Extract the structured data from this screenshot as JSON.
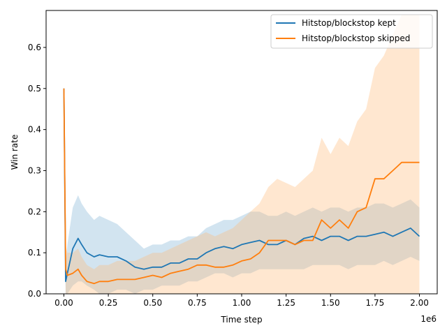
{
  "chart_data": {
    "type": "line",
    "title": "",
    "xlabel": "Time step",
    "ylabel": "Win rate",
    "x_offset_label": "1e6",
    "xlim": [
      -0.1,
      2.1
    ],
    "ylim": [
      0,
      0.69
    ],
    "x_ticks": [
      0,
      0.25,
      0.5,
      0.75,
      1.0,
      1.25,
      1.5,
      1.75,
      2.0
    ],
    "x_tick_labels": [
      "0.00",
      "0.25",
      "0.50",
      "0.75",
      "1.00",
      "1.25",
      "1.50",
      "1.75",
      "2.00"
    ],
    "y_ticks": [
      0,
      0.1,
      0.2,
      0.3,
      0.4,
      0.5,
      0.6
    ],
    "y_tick_labels": [
      "0.0",
      "0.1",
      "0.2",
      "0.3",
      "0.4",
      "0.5",
      "0.6"
    ],
    "grid": false,
    "legend_position": "top-right",
    "series": [
      {
        "name": "Hitstop/blockstop kept",
        "color": "#1f77b4",
        "band_color": "#1f77b4",
        "x": [
          0,
          0.01,
          0.02,
          0.05,
          0.08,
          0.1,
          0.13,
          0.17,
          0.2,
          0.25,
          0.3,
          0.35,
          0.4,
          0.45,
          0.5,
          0.55,
          0.6,
          0.65,
          0.7,
          0.75,
          0.8,
          0.85,
          0.9,
          0.95,
          1.0,
          1.05,
          1.1,
          1.15,
          1.2,
          1.25,
          1.3,
          1.35,
          1.4,
          1.45,
          1.5,
          1.55,
          1.6,
          1.65,
          1.7,
          1.75,
          1.8,
          1.85,
          1.9,
          1.95,
          2.0
        ],
        "y": [
          0.5,
          0.03,
          0.05,
          0.11,
          0.135,
          0.12,
          0.1,
          0.09,
          0.095,
          0.09,
          0.09,
          0.08,
          0.065,
          0.06,
          0.065,
          0.065,
          0.075,
          0.075,
          0.085,
          0.085,
          0.1,
          0.11,
          0.115,
          0.11,
          0.12,
          0.125,
          0.13,
          0.12,
          0.12,
          0.13,
          0.12,
          0.135,
          0.14,
          0.13,
          0.14,
          0.14,
          0.13,
          0.14,
          0.14,
          0.145,
          0.15,
          0.14,
          0.15,
          0.16,
          0.14
        ],
        "lower": [
          0.5,
          0.0,
          0.0,
          0.02,
          0.03,
          0.03,
          0.02,
          0.01,
          0.0,
          0.0,
          0.01,
          0.01,
          0.0,
          0.01,
          0.01,
          0.02,
          0.02,
          0.02,
          0.03,
          0.03,
          0.04,
          0.05,
          0.05,
          0.04,
          0.05,
          0.05,
          0.06,
          0.06,
          0.06,
          0.06,
          0.06,
          0.06,
          0.07,
          0.07,
          0.07,
          0.07,
          0.06,
          0.07,
          0.07,
          0.07,
          0.08,
          0.07,
          0.08,
          0.09,
          0.08
        ],
        "upper": [
          0.5,
          0.07,
          0.12,
          0.21,
          0.24,
          0.22,
          0.2,
          0.18,
          0.19,
          0.18,
          0.17,
          0.15,
          0.13,
          0.11,
          0.12,
          0.12,
          0.13,
          0.13,
          0.14,
          0.14,
          0.16,
          0.17,
          0.18,
          0.18,
          0.19,
          0.2,
          0.2,
          0.19,
          0.19,
          0.2,
          0.19,
          0.2,
          0.21,
          0.2,
          0.21,
          0.21,
          0.2,
          0.21,
          0.21,
          0.22,
          0.22,
          0.21,
          0.22,
          0.23,
          0.21
        ]
      },
      {
        "name": "Hitstop/blockstop skipped",
        "color": "#ff7f0e",
        "band_color": "#ffbb78",
        "x": [
          0,
          0.01,
          0.02,
          0.05,
          0.08,
          0.1,
          0.13,
          0.17,
          0.2,
          0.25,
          0.3,
          0.35,
          0.4,
          0.45,
          0.5,
          0.55,
          0.6,
          0.65,
          0.7,
          0.75,
          0.8,
          0.85,
          0.9,
          0.95,
          1.0,
          1.05,
          1.1,
          1.15,
          1.2,
          1.25,
          1.3,
          1.35,
          1.4,
          1.45,
          1.5,
          1.55,
          1.6,
          1.65,
          1.7,
          1.75,
          1.8,
          1.85,
          1.9,
          1.95,
          2.0
        ],
        "y": [
          0.5,
          0.06,
          0.045,
          0.05,
          0.06,
          0.045,
          0.03,
          0.025,
          0.03,
          0.03,
          0.035,
          0.035,
          0.035,
          0.04,
          0.045,
          0.04,
          0.05,
          0.055,
          0.06,
          0.07,
          0.07,
          0.065,
          0.065,
          0.07,
          0.08,
          0.085,
          0.1,
          0.13,
          0.13,
          0.13,
          0.12,
          0.13,
          0.13,
          0.18,
          0.16,
          0.18,
          0.16,
          0.2,
          0.21,
          0.28,
          0.28,
          0.3,
          0.32,
          0.32,
          0.32
        ],
        "lower": [
          0.5,
          0.0,
          0.0,
          0.0,
          0.0,
          0.0,
          0.0,
          0.0,
          0.0,
          0.0,
          0.0,
          0.0,
          0.0,
          0.0,
          0.0,
          0.0,
          0.0,
          0.0,
          0.0,
          0.0,
          0.0,
          0.0,
          0.0,
          0.0,
          0.0,
          0.0,
          0.0,
          0.0,
          0.0,
          0.0,
          0.0,
          0.0,
          0.0,
          0.0,
          0.0,
          0.0,
          0.0,
          0.0,
          0.0,
          0.0,
          0.0,
          0.0,
          0.0,
          0.0,
          0.0
        ],
        "upper": [
          0.5,
          0.12,
          0.1,
          0.1,
          0.11,
          0.09,
          0.07,
          0.06,
          0.07,
          0.07,
          0.08,
          0.08,
          0.08,
          0.09,
          0.1,
          0.1,
          0.11,
          0.12,
          0.13,
          0.14,
          0.15,
          0.14,
          0.15,
          0.16,
          0.18,
          0.2,
          0.22,
          0.26,
          0.28,
          0.27,
          0.26,
          0.28,
          0.3,
          0.38,
          0.34,
          0.38,
          0.36,
          0.42,
          0.45,
          0.55,
          0.58,
          0.63,
          0.68,
          0.68,
          0.68
        ]
      }
    ]
  }
}
